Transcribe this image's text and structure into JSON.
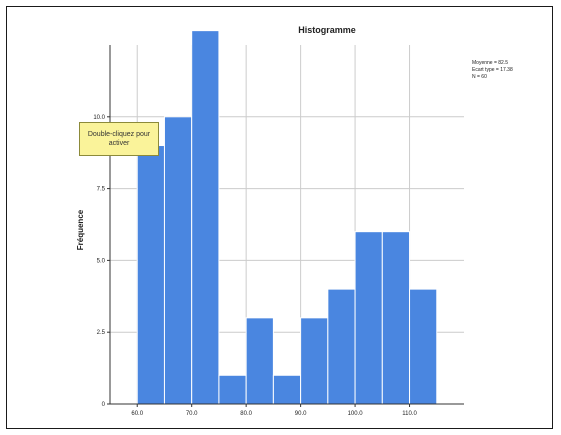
{
  "chart_data": {
    "type": "bar",
    "title": "Histogramme",
    "xlabel": "",
    "ylabel": "Fréquence",
    "x_ticks": [
      "60.0",
      "70.0",
      "80.0",
      "90.0",
      "100.0",
      "110.0"
    ],
    "y_ticks": [
      "0",
      "2.5",
      "5.0",
      "7.5",
      "10.0"
    ],
    "ylim": [
      0,
      12.5
    ],
    "bins": [
      {
        "from": 60,
        "to": 65,
        "value": 9
      },
      {
        "from": 65,
        "to": 70,
        "value": 10
      },
      {
        "from": 70,
        "to": 75,
        "value": 13
      },
      {
        "from": 75,
        "to": 80,
        "value": 1
      },
      {
        "from": 80,
        "to": 85,
        "value": 3
      },
      {
        "from": 85,
        "to": 90,
        "value": 1
      },
      {
        "from": 90,
        "to": 95,
        "value": 3
      },
      {
        "from": 95,
        "to": 100,
        "value": 4
      },
      {
        "from": 100,
        "to": 105,
        "value": 6
      },
      {
        "from": 105,
        "to": 110,
        "value": 6
      },
      {
        "from": 110,
        "to": 115,
        "value": 4
      }
    ],
    "stats": [
      "Moyenne = 82.5",
      "Ecart type = 17.38",
      "N = 60"
    ],
    "grid": true,
    "bar_color": "#4a86e0",
    "bar_edge_color": "#ffffff"
  },
  "tooltip": {
    "line1": "Double-cliquez pour",
    "line2": "activer"
  },
  "colors": {
    "grid": "#cccccc",
    "axis": "#333333",
    "tooltip_bg": "#faf39a"
  }
}
